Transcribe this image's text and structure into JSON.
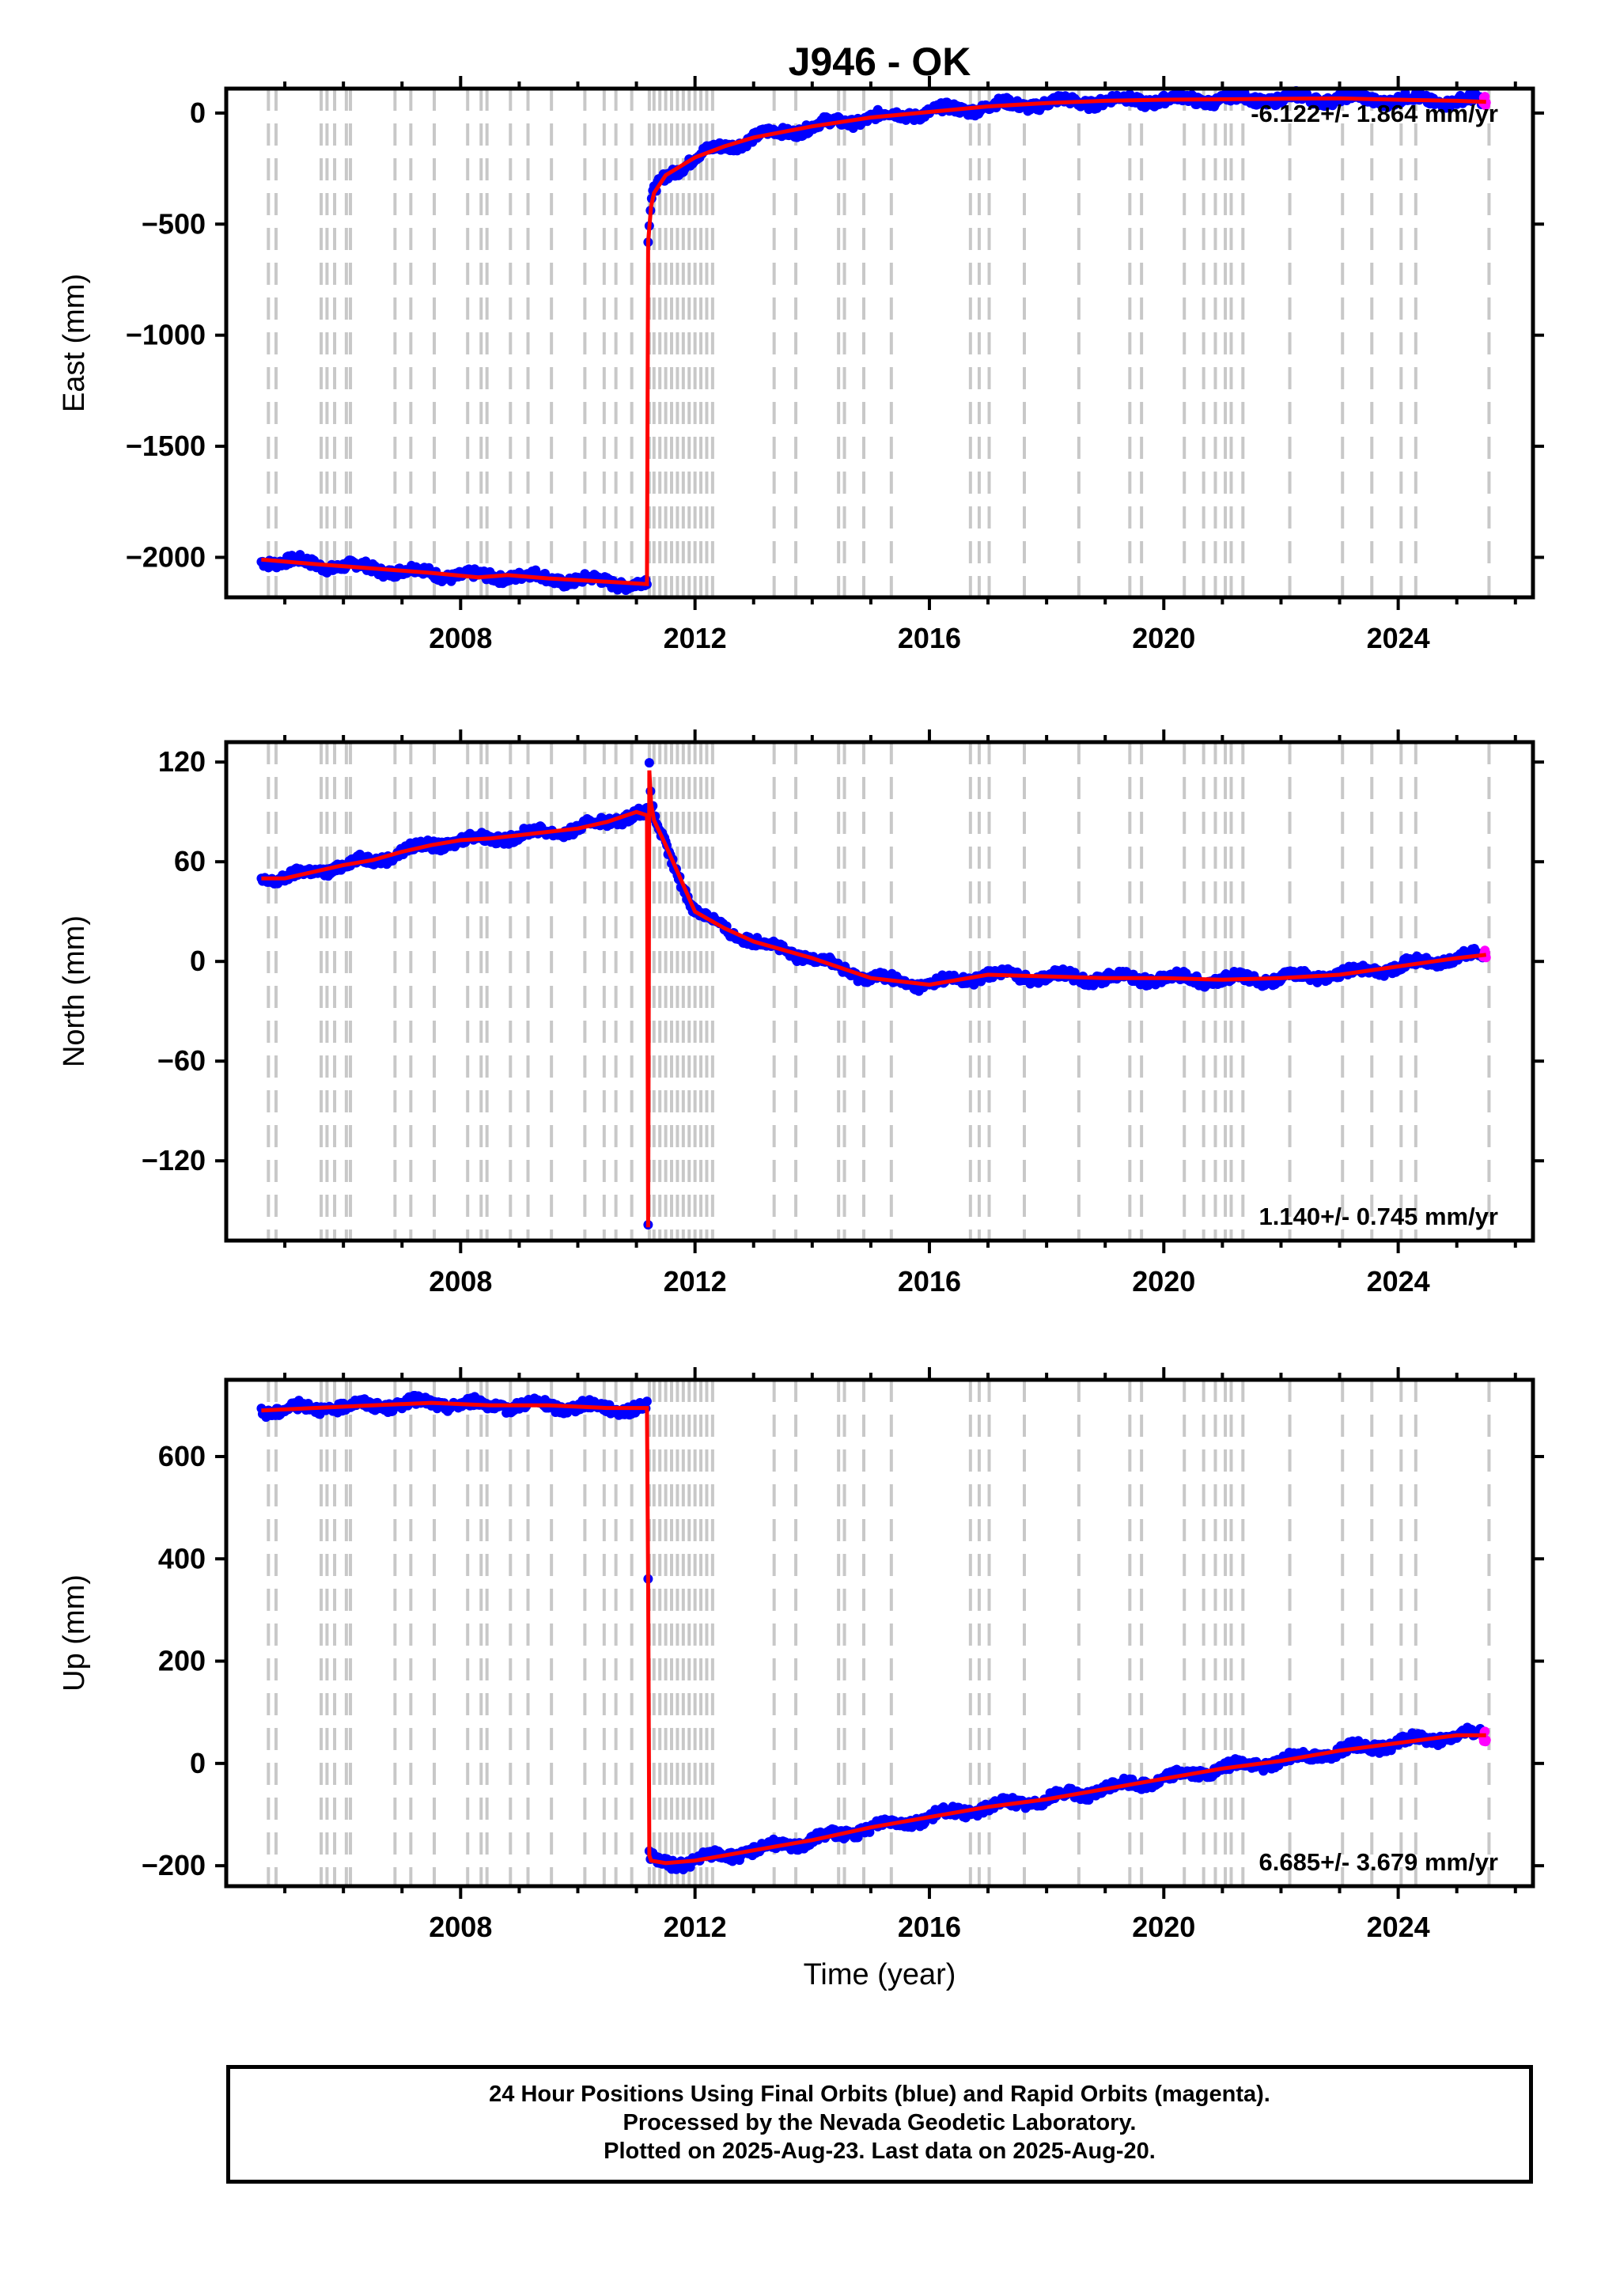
{
  "chart_data": {
    "type": "scatter",
    "title": "J946 - OK",
    "xlabel": "Time (year)",
    "xlim": [
      2004.0,
      2026.3
    ],
    "x_ticks": [
      2008,
      2012,
      2016,
      2020,
      2024
    ],
    "colors": {
      "final": "#0000ff",
      "rapid": "#ff00ff",
      "model": "#ff0000",
      "steps": "#c8c8c8"
    },
    "step_dates": [
      2004.72,
      2004.85,
      2005.62,
      2005.72,
      2005.85,
      2006.05,
      2006.12,
      2006.88,
      2007.15,
      2007.55,
      2008.12,
      2008.35,
      2008.45,
      2008.85,
      2009.15,
      2009.55,
      2010.12,
      2010.45,
      2010.65,
      2010.92,
      2011.22,
      2011.3,
      2011.4,
      2011.5,
      2011.6,
      2011.7,
      2011.8,
      2011.9,
      2012.0,
      2012.1,
      2012.2,
      2012.3,
      2013.35,
      2013.72,
      2014.45,
      2014.55,
      2014.88,
      2015.35,
      2016.7,
      2016.85,
      2017.02,
      2017.62,
      2018.55,
      2019.42,
      2019.62,
      2020.35,
      2020.68,
      2020.88,
      2021.05,
      2021.15,
      2021.35,
      2022.15,
      2023.05,
      2023.55,
      2024.05,
      2024.3,
      2025.55
    ],
    "panels": [
      {
        "ylabel": "East (mm)",
        "ylim": [
          -2180,
          110
        ],
        "yticks": [
          0,
          -500,
          -1000,
          -1500,
          -2000
        ],
        "rate": "-6.122+/- 1.864 mm/yr",
        "rate_position": "top-right",
        "series": [
          {
            "x": [
              2004.6,
              2005.5,
              2006.5,
              2007.5,
              2008.3,
              2008.8,
              2009.5,
              2010.5,
              2011.18,
              2011.2,
              2011.25,
              2011.3,
              2011.5,
              2012.0,
              2012.5,
              2013.0,
              2014.0,
              2015.0,
              2016.0,
              2017.0,
              2018.0,
              2019.0,
              2020.0,
              2021.0,
              2022.0,
              2023.0,
              2024.0,
              2025.0,
              2025.5
            ],
            "y": [
              -2010,
              -2030,
              -2050,
              -2070,
              -2090,
              -2080,
              -2095,
              -2110,
              -2120,
              -580,
              -420,
              -360,
              -280,
              -200,
              -150,
              -110,
              -60,
              -20,
              5,
              30,
              45,
              55,
              60,
              62,
              64,
              66,
              60,
              55,
              50
            ]
          }
        ]
      },
      {
        "ylabel": "North (mm)",
        "ylim": [
          -168,
          132
        ],
        "yticks": [
          120,
          60,
          0,
          -60,
          -120
        ],
        "rate": "1.140+/- 0.745 mm/yr",
        "rate_position": "bottom-right",
        "series": [
          {
            "x": [
              2004.6,
              2005.0,
              2005.5,
              2006.0,
              2006.5,
              2007.0,
              2007.5,
              2008.0,
              2008.5,
              2009.0,
              2009.5,
              2010.0,
              2010.5,
              2011.0,
              2011.18,
              2011.2,
              2011.22,
              2011.25,
              2011.3,
              2011.5,
              2012.0,
              2012.5,
              2013.0,
              2014.0,
              2015.0,
              2016.0,
              2017.0,
              2018.0,
              2019.0,
              2020.0,
              2021.0,
              2022.0,
              2023.0,
              2024.0,
              2025.0,
              2025.5
            ],
            "y": [
              50,
              50,
              54,
              58,
              61,
              66,
              70,
              73,
              74,
              76,
              78,
              80,
              84,
              90,
              88,
              -160,
              115,
              95,
              85,
              70,
              30,
              20,
              12,
              2,
              -10,
              -14,
              -8,
              -9,
              -10,
              -10,
              -11,
              -10,
              -8,
              -3,
              2,
              4
            ]
          }
        ]
      },
      {
        "ylabel": "Up (mm)",
        "ylim": [
          -240,
          750
        ],
        "yticks": [
          600,
          400,
          200,
          0,
          -200
        ],
        "rate": "6.685+/- 3.679 mm/yr",
        "rate_position": "bottom-right",
        "series": [
          {
            "x": [
              2004.6,
              2005.5,
              2006.5,
              2007.5,
              2008.5,
              2009.5,
              2010.5,
              2011.18,
              2011.2,
              2011.22,
              2011.25,
              2011.5,
              2012.0,
              2013.0,
              2014.0,
              2015.0,
              2016.0,
              2017.0,
              2018.0,
              2019.0,
              2020.0,
              2021.0,
              2022.0,
              2023.0,
              2024.0,
              2025.0,
              2025.5
            ],
            "y": [
              690,
              695,
              700,
              705,
              700,
              700,
              695,
              695,
              350,
              -180,
              -190,
              -195,
              -190,
              -170,
              -150,
              -125,
              -105,
              -85,
              -70,
              -50,
              -30,
              -10,
              5,
              25,
              40,
              55,
              55
            ]
          }
        ]
      }
    ]
  },
  "footer": {
    "line1": "24 Hour Positions Using Final Orbits (blue) and Rapid Orbits (magenta).",
    "line2": "Processed by the Nevada Geodetic Laboratory.",
    "line3": "Plotted on 2025-Aug-23. Last data on 2025-Aug-20."
  }
}
